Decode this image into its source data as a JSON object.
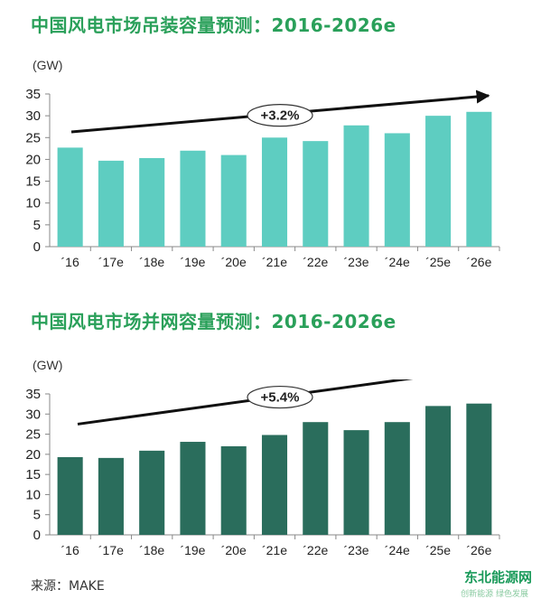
{
  "chart_data": [
    {
      "type": "bar",
      "title": "中国风电市场吊装容量预测：2016-2026e",
      "unit": "(GW)",
      "categories": [
        "´16",
        "´17e",
        "´18e",
        "´19e",
        "´20e",
        "´21e",
        "´22e",
        "´23e",
        "´24e",
        "´25e",
        "´26e"
      ],
      "values": [
        22.7,
        19.7,
        20.3,
        22,
        21,
        25,
        24.2,
        27.8,
        26,
        30,
        30.9
      ],
      "ylim": [
        0,
        35
      ],
      "yticks": [
        0,
        5,
        10,
        15,
        20,
        25,
        30,
        35
      ],
      "annotation": "+3.2%",
      "trend": [
        26.3,
        34.6
      ],
      "color": "#5ecdc1",
      "grid": false
    },
    {
      "type": "bar",
      "title": "中国风电市场并网容量预测：2016-2026e",
      "unit": "(GW)",
      "categories": [
        "´16",
        "´17e",
        "´18e",
        "´19e",
        "´20e",
        "´21e",
        "´22e",
        "´23e",
        "´24e",
        "´25e",
        "´26e"
      ],
      "values": [
        19.3,
        19.1,
        20.9,
        23.1,
        22,
        24.8,
        28,
        26,
        28,
        32,
        32.6
      ],
      "ylim": [
        0,
        35
      ],
      "yticks": [
        0,
        5,
        10,
        15,
        20,
        25,
        30,
        35
      ],
      "annotation": "+5.4%",
      "trend": [
        27.5,
        41.5
      ],
      "color": "#2a6d5c",
      "grid": false
    }
  ],
  "source": "来源：MAKE",
  "watermark": "东北能源网",
  "watermark_sub": "创新能源 绿色发展"
}
